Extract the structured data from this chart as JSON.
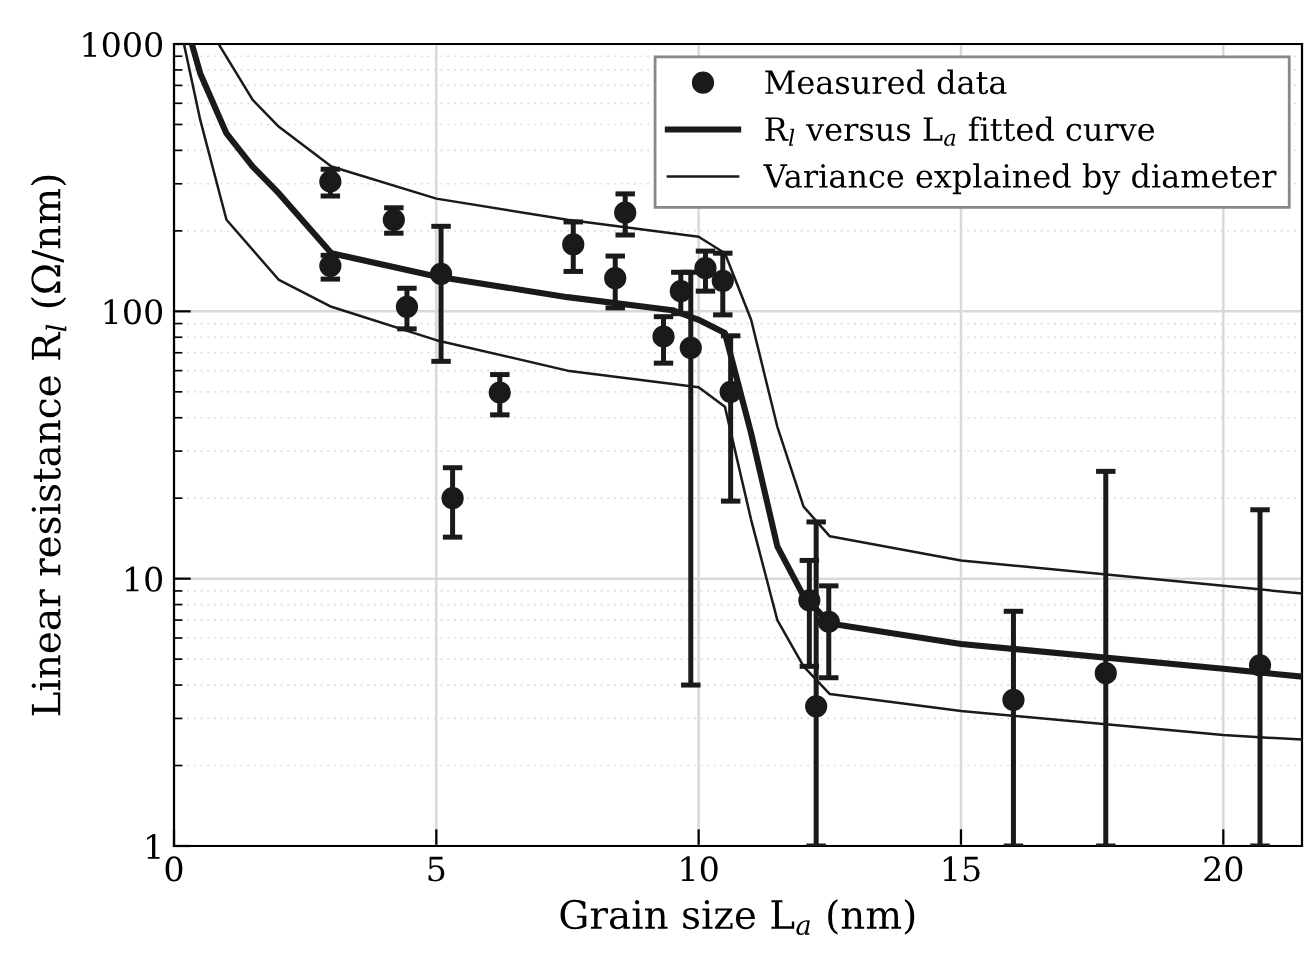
{
  "chart_data": {
    "type": "scatter",
    "xlabel": "Grain size L$_{a}$ (nm)",
    "ylabel": "Linear resistance R$_{l}$ (Ω/nm)",
    "xlim": [
      0,
      21.5
    ],
    "xticks": [
      0,
      5,
      10,
      15,
      20
    ],
    "ylim": [
      1,
      1000
    ],
    "yticks": [
      1,
      10,
      100,
      1000
    ],
    "log": "y",
    "grid": true,
    "legend": "top right",
    "series": [
      {
        "name": "Measured data",
        "marker": "circle",
        "color": "#1a1a1a",
        "x": [
          2.98,
          2.98,
          4.19,
          4.44,
          5.09,
          5.31,
          6.21,
          7.61,
          8.41,
          8.6,
          9.33,
          9.66,
          9.85,
          10.13,
          10.46,
          10.61,
          12.11,
          12.24,
          12.48,
          16.0,
          17.76,
          20.7
        ],
        "values": [
          306,
          148,
          220,
          104,
          138,
          20,
          49.7,
          178,
          133,
          234,
          80.5,
          119,
          73,
          145,
          130,
          50,
          8.3,
          3.33,
          6.9,
          3.52,
          4.43,
          4.74
        ],
        "errors": [
          [
            270,
            340
          ],
          [
            132,
            162
          ],
          [
            196,
            244
          ],
          [
            86,
            122
          ],
          [
            65,
            208
          ],
          [
            14.3,
            26
          ],
          [
            41,
            58
          ],
          [
            141,
            216
          ],
          [
            103,
            161
          ],
          [
            193,
            275
          ],
          [
            64,
            95.5
          ],
          [
            98,
            140
          ],
          [
            4.0,
            140
          ],
          [
            119,
            168
          ],
          [
            97,
            165
          ],
          [
            19.5,
            81
          ],
          [
            4.7,
            11.7
          ],
          [
            1,
            16.3
          ],
          [
            4.26,
            9.4
          ],
          [
            1,
            7.55
          ],
          [
            1,
            25.2
          ],
          [
            1,
            18.1
          ]
        ]
      },
      {
        "name": "R$_{l}$ versus L$_{a}$ fitted curve",
        "type": "line",
        "color": "#1a1a1a",
        "marker": "none",
        "line_style": "solid",
        "x": [
          0.34,
          0.5,
          1,
          1.5,
          2,
          3,
          5,
          7.5,
          9.5,
          10,
          10.5,
          11,
          11.5,
          12,
          12.5,
          15,
          20,
          21.5
        ],
        "values": [
          1000,
          776,
          463,
          348,
          276,
          165,
          135,
          113,
          101,
          93,
          83,
          35,
          13.2,
          8.6,
          6.8,
          5.7,
          4.6,
          4.3
        ]
      },
      {
        "name": "Variance explained by diameter",
        "type": "line",
        "color": "#1a1a1a",
        "marker": "none",
        "line_style": "solid",
        "x": [
          0.85,
          1.5,
          2,
          3,
          5,
          7.5,
          10,
          10.5,
          11,
          11.5,
          12,
          12.5,
          15,
          20,
          21.5
        ],
        "values": [
          1000,
          618,
          490,
          348,
          264,
          220,
          190,
          165,
          93,
          37,
          18.6,
          14.4,
          11.7,
          9.4,
          8.8
        ]
      },
      {
        "type": "line",
        "color": "#1a1a1a",
        "marker": "none",
        "line_style": "solid",
        "x": [
          0.19,
          0.5,
          1,
          2,
          3,
          5,
          7.5,
          10,
          10.5,
          11,
          11.5,
          12,
          12.5,
          15,
          20,
          21.5
        ],
        "values": [
          1000,
          520,
          220,
          131,
          104,
          78,
          60,
          52,
          44,
          16.6,
          7.0,
          4.7,
          3.7,
          3.2,
          2.6,
          2.5
        ]
      }
    ]
  }
}
